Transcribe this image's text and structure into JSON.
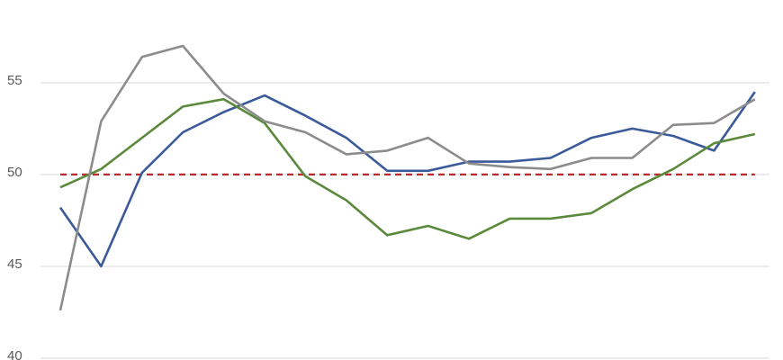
{
  "chart_data": {
    "type": "line",
    "categories": [
      null,
      null,
      null,
      null,
      null,
      null,
      null,
      null,
      null,
      null,
      null,
      null,
      null,
      null,
      null,
      null,
      null,
      null
    ],
    "series": [
      {
        "color": "#3b5a9a",
        "values": [
          48.2,
          45.0,
          50.1,
          52.3,
          53.4,
          54.3,
          53.2,
          52.0,
          50.2,
          50.2,
          50.7,
          50.7,
          50.9,
          52.0,
          52.5,
          52.1,
          51.3,
          54.5
        ]
      },
      {
        "color": "#5b8a3c",
        "values": [
          49.3,
          50.3,
          52.0,
          53.7,
          54.1,
          52.8,
          49.9,
          48.6,
          46.7,
          47.2,
          46.5,
          47.6,
          47.6,
          47.9,
          49.2,
          50.3,
          51.7,
          52.2
        ]
      },
      {
        "color": "#8c8c8c",
        "values": [
          42.6,
          52.9,
          56.4,
          57.0,
          54.4,
          52.9,
          52.3,
          51.1,
          51.3,
          52.0,
          50.6,
          50.4,
          50.3,
          50.9,
          50.9,
          52.7,
          52.8,
          54.1
        ]
      }
    ],
    "reference_line": {
      "value": 50,
      "color": "#c0282d",
      "dashed": true
    },
    "ylim": [
      40,
      59.5
    ],
    "yticks": [
      40,
      45,
      50,
      55
    ],
    "grid": true
  }
}
